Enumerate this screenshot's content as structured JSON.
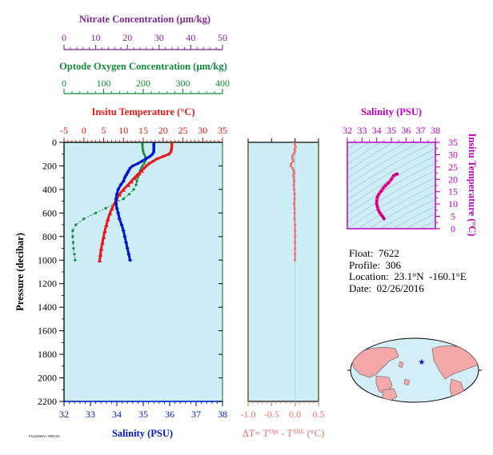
{
  "info": {
    "float": "Float:  7622",
    "profile": "Profile:  306",
    "location": "Location:  23.1°N  -160.1°E",
    "date": "Date:  02/26/2016"
  },
  "footer_tag": "FN22008A1 9990/04",
  "colors": {
    "nitrate": "#7b2a8c",
    "oxygen": "#14893c",
    "temperature": "#e81a1a",
    "salinity": "#0019c8",
    "delta_t": "#f07070",
    "ts_salinity": "#c000c0",
    "ts_trace": "#ff1a9a",
    "panel_fill": "#cdeef7"
  },
  "chart_data": [
    {
      "type": "line",
      "panel": "profile",
      "ylabel": "Pressure (decibar)",
      "y_ticks": [
        0,
        200,
        400,
        600,
        800,
        1000,
        1200,
        1400,
        1600,
        1800,
        2000,
        2200
      ],
      "ylim": [
        0,
        2200
      ],
      "axes": {
        "nitrate": {
          "label": "Nitrate Concentration (µm/kg)",
          "range": [
            0,
            50
          ],
          "ticks": [
            0,
            10,
            20,
            30,
            40,
            50
          ]
        },
        "oxygen": {
          "label": "Optode Oxygen Concentration (µm/kg)",
          "range": [
            0,
            400
          ],
          "ticks": [
            0,
            100,
            200,
            300,
            400
          ]
        },
        "temperature": {
          "label": "Insitu Temperature (°C)",
          "range": [
            -5,
            35
          ],
          "ticks": [
            -5,
            0,
            5,
            10,
            15,
            20,
            25,
            30,
            35
          ]
        },
        "salinity": {
          "label": "Salinity (PSU)",
          "range": [
            32,
            38
          ],
          "ticks": [
            32,
            33,
            34,
            35,
            36,
            37,
            38
          ]
        }
      },
      "series": [
        {
          "key": "temperature",
          "pressure": [
            5,
            20,
            40,
            60,
            80,
            100,
            120,
            140,
            160,
            180,
            200,
            220,
            240,
            260,
            280,
            300,
            330,
            360,
            400,
            440,
            480,
            520,
            560,
            600,
            650,
            700,
            750,
            800,
            850,
            900,
            950,
            1000
          ],
          "values": [
            22.2,
            22.2,
            22.2,
            22.1,
            22.0,
            21.5,
            20.0,
            18.5,
            17.5,
            16.5,
            15.8,
            15.2,
            14.6,
            14.0,
            13.4,
            12.8,
            12.0,
            11.2,
            10.0,
            9.0,
            8.3,
            7.7,
            7.1,
            6.6,
            6.1,
            5.7,
            5.3,
            5.0,
            4.7,
            4.4,
            4.2,
            4.0
          ]
        },
        {
          "key": "salinity",
          "pressure": [
            5,
            20,
            40,
            60,
            80,
            100,
            120,
            140,
            160,
            180,
            200,
            220,
            240,
            260,
            280,
            300,
            330,
            360,
            400,
            440,
            480,
            520,
            560,
            600,
            650,
            700,
            750,
            800,
            850,
            900,
            950,
            1000
          ],
          "values": [
            35.4,
            35.4,
            35.4,
            35.4,
            35.4,
            35.35,
            35.25,
            35.1,
            34.95,
            34.8,
            34.6,
            34.5,
            34.45,
            34.4,
            34.35,
            34.3,
            34.25,
            34.15,
            34.05,
            34.0,
            33.97,
            33.97,
            34.0,
            34.05,
            34.1,
            34.18,
            34.25,
            34.3,
            34.35,
            34.4,
            34.45,
            34.5
          ]
        },
        {
          "key": "oxygen",
          "pressure": [
            5,
            20,
            40,
            60,
            80,
            100,
            120,
            140,
            160,
            180,
            200,
            220,
            240,
            260,
            280,
            300,
            330,
            360,
            400,
            440,
            480,
            520,
            560,
            600,
            650,
            700,
            750,
            800,
            850,
            900,
            950,
            1000
          ],
          "values": [
            198,
            198,
            198,
            199,
            200,
            202,
            205,
            206,
            205,
            202,
            198,
            195,
            192,
            190,
            188,
            186,
            184,
            182,
            176,
            165,
            150,
            128,
            105,
            80,
            50,
            30,
            22,
            22,
            23,
            24,
            26,
            28
          ]
        }
      ]
    },
    {
      "type": "line",
      "panel": "delta_t",
      "xlabel": "ΔT= T^Opt - T^SBE (°C)",
      "xlim": [
        -1.0,
        0.5
      ],
      "x_ticks": [
        -1.0,
        -0.5,
        0.0,
        0.5
      ],
      "x_tick_labels": [
        "-1.0",
        "-0.5",
        "0.0",
        "0.5"
      ],
      "ylim": [
        0,
        2200
      ],
      "series": [
        {
          "key": "delta_t",
          "pressure": [
            5,
            20,
            40,
            60,
            80,
            100,
            120,
            140,
            160,
            180,
            200,
            220,
            240,
            260,
            280,
            300,
            330,
            360,
            400,
            440,
            480,
            520,
            560,
            600,
            650,
            700,
            750,
            800,
            850,
            900,
            950,
            1000
          ],
          "values": [
            0.0,
            0.0,
            0.01,
            -0.01,
            0.0,
            -0.03,
            -0.06,
            -0.05,
            -0.04,
            -0.08,
            -0.09,
            -0.05,
            -0.03,
            -0.02,
            -0.04,
            -0.03,
            -0.02,
            -0.03,
            -0.02,
            -0.01,
            -0.01,
            -0.02,
            -0.01,
            -0.01,
            -0.01,
            0.0,
            0.0,
            0.0,
            0.0,
            0.0,
            0.0,
            0.0
          ]
        }
      ]
    },
    {
      "type": "scatter",
      "panel": "ts",
      "xlabel": "Salinity (PSU)",
      "ylabel": "Insitu Temperature (°C)",
      "xlim": [
        32,
        38
      ],
      "ylim": [
        0,
        35
      ],
      "x_ticks": [
        32,
        33,
        34,
        35,
        36,
        37,
        38
      ],
      "y_ticks": [
        0,
        5,
        10,
        15,
        20,
        25,
        30,
        35
      ],
      "points": {
        "salinity": [
          34.5,
          34.45,
          34.4,
          34.3,
          34.2,
          34.1,
          34.05,
          34.0,
          34.0,
          34.05,
          34.15,
          34.3,
          34.45,
          34.6,
          34.8,
          35.0,
          35.15,
          35.3,
          35.4
        ],
        "temperature": [
          4.0,
          4.5,
          5.0,
          5.7,
          6.6,
          7.7,
          9.0,
          10.0,
          11.2,
          12.8,
          14.0,
          15.2,
          16.5,
          17.5,
          18.5,
          20.0,
          21.5,
          22.0,
          22.2
        ]
      }
    }
  ],
  "map": {
    "marker_lat": 23.1,
    "marker_lon": -160.1,
    "ocean_color": "#d4eef7",
    "land_color": "#f4a8a8"
  }
}
